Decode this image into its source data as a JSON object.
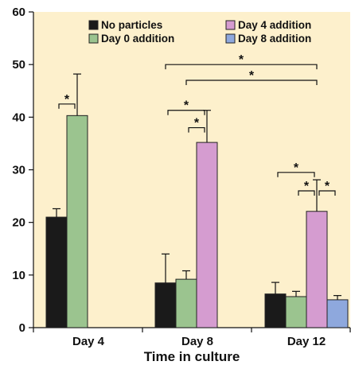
{
  "chart_data": {
    "type": "bar",
    "title": "",
    "xlabel": "Time in culture",
    "ylabel": "",
    "ylim": [
      0,
      60
    ],
    "yticks": [
      0,
      10,
      20,
      30,
      40,
      50,
      60
    ],
    "categories": [
      "Day 4",
      "Day 8",
      "Day 12"
    ],
    "grid": false,
    "legend_position": "top",
    "series": [
      {
        "name": "No particles",
        "color": "#1a1a1a",
        "values": [
          21.0,
          8.5,
          6.4
        ],
        "errors": [
          1.6,
          5.5,
          2.2
        ]
      },
      {
        "name": "Day 0 addition",
        "color": "#9bc48f",
        "values": [
          40.3,
          9.2,
          5.9
        ],
        "errors": [
          7.9,
          1.6,
          1.0
        ]
      },
      {
        "name": "Day 4 addition",
        "color": "#d59cd0",
        "values": [
          null,
          35.2,
          22.1
        ],
        "errors": [
          null,
          6.1,
          6.0
        ]
      },
      {
        "name": "Day 8 addition",
        "color": "#8ea8dd",
        "values": [
          null,
          null,
          5.3
        ],
        "errors": [
          null,
          null,
          0.8
        ]
      }
    ],
    "significance": [
      {
        "category": 0,
        "from": 0,
        "to": 1,
        "y": 42.5,
        "label": "*"
      },
      {
        "category": 1,
        "from": 0,
        "to": 2,
        "y": 41.3,
        "label": "*"
      },
      {
        "category": 1,
        "from": 1,
        "to": 2,
        "y": 38.0,
        "label": "*"
      },
      {
        "category": 2,
        "from": 0,
        "to": 2,
        "y": 29.5,
        "label": "*"
      },
      {
        "category": 2,
        "from": 1,
        "to": 2,
        "y": 26.0,
        "label": "*"
      },
      {
        "category": 2,
        "from": 2,
        "to": 3,
        "y": 26.0,
        "label": "*"
      },
      {
        "from_cat": 1,
        "from": 0,
        "to_cat": 2,
        "to": 2,
        "y": 50.0,
        "label": "*"
      },
      {
        "from_cat": 1,
        "from": 1,
        "to_cat": 2,
        "to": 2,
        "y": 47.0,
        "label": "*"
      }
    ]
  }
}
